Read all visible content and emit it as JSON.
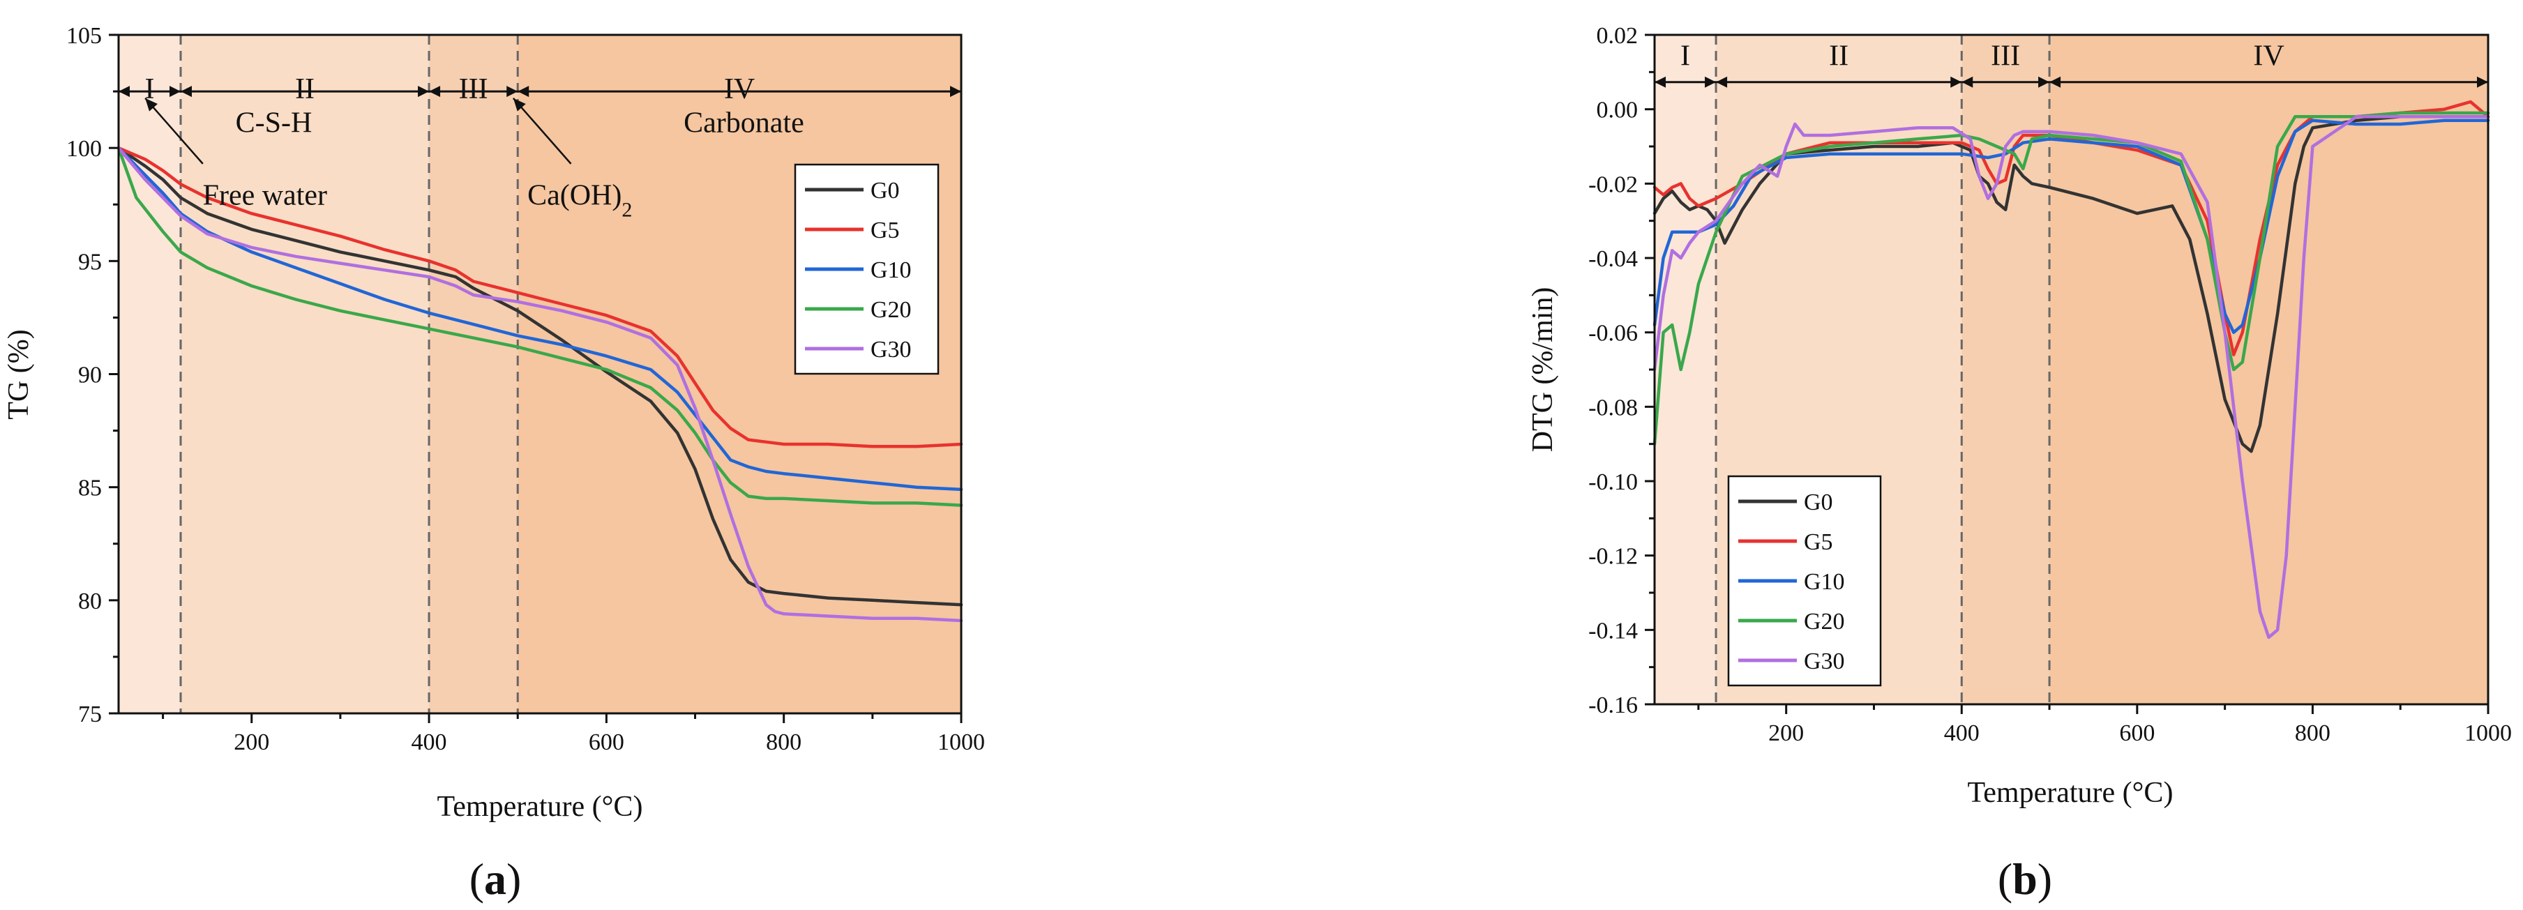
{
  "panels": [
    {
      "label_open": "(",
      "label": "a",
      "label_close": ")",
      "chart_data": {
        "type": "line",
        "xlabel": "Temperature (°C)",
        "ylabel": "TG (%)",
        "xlim": [
          50,
          1000
        ],
        "ylim": [
          75,
          105
        ],
        "x_ticks": [
          200,
          400,
          600,
          800,
          1000
        ],
        "y_ticks": [
          75,
          80,
          85,
          90,
          95,
          100,
          105
        ],
        "regions": [
          {
            "label": "I",
            "x0": 50,
            "x1": 120,
            "color": "#fbe6d8"
          },
          {
            "label": "II",
            "x0": 120,
            "x1": 400,
            "color": "#f9ddc6"
          },
          {
            "label": "III",
            "x0": 400,
            "x1": 500,
            "color": "#f6cfb0"
          },
          {
            "label": "IV",
            "x0": 500,
            "x1": 1000,
            "color": "#f5c6a0"
          }
        ],
        "region_label_y": 102.2,
        "arrow_y": 102.5,
        "annotations": [
          {
            "text": "C-S-H",
            "x": 225,
            "y": 100.7
          },
          {
            "text": "Free water",
            "x": 215,
            "y": 97.5,
            "arrow_from": [
              145,
              99.3
            ],
            "arrow_to": [
              80,
              102.2
            ]
          },
          {
            "text": "Carbonate",
            "x": 755,
            "y": 100.7
          },
          {
            "text": "Ca(OH)",
            "sub": "2",
            "x": 570,
            "y": 97.5,
            "arrow_from": [
              560,
              99.3
            ],
            "arrow_to": [
              495,
              102.2
            ]
          }
        ],
        "legend": {
          "position": "right",
          "entries": [
            "G0",
            "G5",
            "G10",
            "G20",
            "G30"
          ]
        },
        "series": [
          {
            "name": "G0",
            "color": "#333333",
            "x": [
              50,
              80,
              100,
              120,
              150,
              200,
              250,
              300,
              350,
              400,
              430,
              450,
              500,
              550,
              600,
              650,
              680,
              700,
              720,
              740,
              760,
              780,
              800,
              850,
              900,
              950,
              1000
            ],
            "y": [
              100,
              99.2,
              98.6,
              97.8,
              97.1,
              96.4,
              95.9,
              95.4,
              95.0,
              94.6,
              94.3,
              93.8,
              92.8,
              91.5,
              90.1,
              88.8,
              87.4,
              85.8,
              83.6,
              81.8,
              80.8,
              80.4,
              80.3,
              80.1,
              80.0,
              79.9,
              79.8
            ]
          },
          {
            "name": "G5",
            "color": "#e8322e",
            "x": [
              50,
              80,
              100,
              120,
              150,
              200,
              250,
              300,
              350,
              400,
              430,
              450,
              500,
              550,
              600,
              650,
              680,
              700,
              720,
              740,
              760,
              780,
              800,
              850,
              900,
              950,
              1000
            ],
            "y": [
              100,
              99.5,
              99.0,
              98.4,
              97.8,
              97.1,
              96.6,
              96.1,
              95.5,
              95.0,
              94.6,
              94.1,
              93.6,
              93.1,
              92.6,
              91.9,
              90.8,
              89.6,
              88.4,
              87.6,
              87.1,
              87.0,
              86.9,
              86.9,
              86.8,
              86.8,
              86.9
            ]
          },
          {
            "name": "G10",
            "color": "#2166d6",
            "x": [
              50,
              80,
              100,
              120,
              150,
              200,
              250,
              300,
              350,
              400,
              450,
              500,
              550,
              600,
              650,
              680,
              700,
              720,
              740,
              760,
              780,
              800,
              850,
              900,
              950,
              1000
            ],
            "y": [
              100,
              98.8,
              98.0,
              97.1,
              96.3,
              95.4,
              94.7,
              94.0,
              93.3,
              92.7,
              92.2,
              91.7,
              91.3,
              90.8,
              90.2,
              89.2,
              88.2,
              87.2,
              86.2,
              85.9,
              85.7,
              85.6,
              85.4,
              85.2,
              85.0,
              84.9
            ]
          },
          {
            "name": "G20",
            "color": "#3aa84b",
            "x": [
              50,
              70,
              100,
              120,
              150,
              200,
              250,
              300,
              350,
              400,
              450,
              500,
              550,
              600,
              650,
              680,
              700,
              720,
              740,
              760,
              780,
              800,
              850,
              900,
              950,
              1000
            ],
            "y": [
              100,
              97.8,
              96.3,
              95.4,
              94.7,
              93.9,
              93.3,
              92.8,
              92.4,
              92.0,
              91.6,
              91.2,
              90.7,
              90.2,
              89.4,
              88.4,
              87.4,
              86.2,
              85.2,
              84.6,
              84.5,
              84.5,
              84.4,
              84.3,
              84.3,
              84.2
            ]
          },
          {
            "name": "G30",
            "color": "#b06fe0",
            "x": [
              50,
              80,
              100,
              120,
              150,
              200,
              250,
              300,
              350,
              400,
              430,
              450,
              500,
              550,
              600,
              650,
              680,
              700,
              720,
              740,
              760,
              780,
              790,
              800,
              850,
              900,
              950,
              1000
            ],
            "y": [
              100,
              98.6,
              97.8,
              97.0,
              96.2,
              95.6,
              95.2,
              94.9,
              94.6,
              94.3,
              93.9,
              93.5,
              93.2,
              92.8,
              92.3,
              91.6,
              90.4,
              88.5,
              86.2,
              83.8,
              81.5,
              79.8,
              79.5,
              79.4,
              79.3,
              79.2,
              79.2,
              79.1
            ]
          }
        ]
      }
    },
    {
      "label_open": "(",
      "label": "b",
      "label_close": ")",
      "chart_data": {
        "type": "line",
        "xlabel": "Temperature (°C)",
        "ylabel": "DTG (%/min)",
        "xlim": [
          50,
          1000
        ],
        "ylim": [
          -0.16,
          0.02
        ],
        "x_ticks": [
          200,
          400,
          600,
          800,
          1000
        ],
        "y_ticks": [
          -0.16,
          -0.14,
          -0.12,
          -0.1,
          -0.08,
          -0.06,
          -0.04,
          -0.02,
          0.0,
          0.02
        ],
        "y_tick_labels": [
          "-0.16",
          "-0.14",
          "-0.12",
          "-0.10",
          "-0.08",
          "-0.06",
          "-0.04",
          "-0.02",
          "0.00",
          "0.02"
        ],
        "regions": [
          {
            "label": "I",
            "x0": 50,
            "x1": 120,
            "color": "#fbe6d8"
          },
          {
            "label": "II",
            "x0": 120,
            "x1": 400,
            "color": "#f9ddc6"
          },
          {
            "label": "III",
            "x0": 400,
            "x1": 500,
            "color": "#f6cfb0"
          },
          {
            "label": "IV",
            "x0": 500,
            "x1": 1000,
            "color": "#f5c6a0"
          }
        ],
        "region_label_y": 0.0118,
        "arrow_y": 0.0073,
        "annotations": [],
        "legend": {
          "position": "bottom-left",
          "entries": [
            "G0",
            "G5",
            "G10",
            "G20",
            "G30"
          ]
        },
        "series": [
          {
            "name": "G0",
            "color": "#333333",
            "x": [
              50,
              60,
              70,
              80,
              90,
              100,
              110,
              120,
              130,
              150,
              170,
              200,
              250,
              300,
              350,
              390,
              410,
              420,
              430,
              440,
              450,
              460,
              470,
              480,
              500,
              550,
              600,
              620,
              640,
              660,
              680,
              700,
              720,
              730,
              740,
              760,
              780,
              790,
              800,
              850,
              900,
              950,
              1000
            ],
            "y": [
              -0.028,
              -0.024,
              -0.022,
              -0.025,
              -0.027,
              -0.026,
              -0.027,
              -0.03,
              -0.036,
              -0.027,
              -0.02,
              -0.012,
              -0.011,
              -0.01,
              -0.01,
              -0.009,
              -0.011,
              -0.018,
              -0.02,
              -0.025,
              -0.027,
              -0.015,
              -0.018,
              -0.02,
              -0.021,
              -0.024,
              -0.028,
              -0.027,
              -0.026,
              -0.035,
              -0.055,
              -0.078,
              -0.09,
              -0.092,
              -0.085,
              -0.055,
              -0.02,
              -0.01,
              -0.005,
              -0.003,
              -0.002,
              -0.002,
              -0.002
            ]
          },
          {
            "name": "G5",
            "color": "#e8322e",
            "x": [
              50,
              60,
              70,
              80,
              90,
              100,
              110,
              120,
              150,
              200,
              250,
              300,
              350,
              400,
              420,
              430,
              440,
              450,
              460,
              470,
              500,
              550,
              600,
              650,
              680,
              700,
              710,
              720,
              740,
              760,
              780,
              800,
              850,
              900,
              950,
              980,
              1000
            ],
            "y": [
              -0.021,
              -0.023,
              -0.021,
              -0.02,
              -0.024,
              -0.026,
              -0.025,
              -0.024,
              -0.02,
              -0.012,
              -0.009,
              -0.009,
              -0.009,
              -0.009,
              -0.011,
              -0.016,
              -0.02,
              -0.019,
              -0.01,
              -0.007,
              -0.007,
              -0.009,
              -0.011,
              -0.015,
              -0.03,
              -0.055,
              -0.066,
              -0.06,
              -0.035,
              -0.015,
              -0.006,
              -0.002,
              -0.002,
              -0.001,
              0.0,
              0.002,
              -0.002
            ]
          },
          {
            "name": "G10",
            "color": "#2166d6",
            "x": [
              50,
              60,
              70,
              80,
              100,
              120,
              140,
              160,
              200,
              250,
              300,
              350,
              400,
              430,
              450,
              470,
              500,
              550,
              600,
              650,
              680,
              700,
              710,
              720,
              740,
              760,
              780,
              800,
              850,
              900,
              950,
              1000
            ],
            "y": [
              -0.058,
              -0.04,
              -0.033,
              -0.033,
              -0.033,
              -0.031,
              -0.026,
              -0.018,
              -0.013,
              -0.012,
              -0.012,
              -0.012,
              -0.012,
              -0.013,
              -0.012,
              -0.009,
              -0.008,
              -0.009,
              -0.01,
              -0.015,
              -0.035,
              -0.055,
              -0.06,
              -0.058,
              -0.04,
              -0.018,
              -0.006,
              -0.003,
              -0.004,
              -0.004,
              -0.003,
              -0.003
            ]
          },
          {
            "name": "G20",
            "color": "#3aa84b",
            "x": [
              50,
              55,
              60,
              70,
              80,
              90,
              100,
              120,
              150,
              200,
              250,
              300,
              350,
              400,
              420,
              440,
              460,
              470,
              480,
              500,
              550,
              600,
              650,
              680,
              700,
              710,
              720,
              740,
              760,
              780,
              800,
              850,
              900,
              950,
              1000
            ],
            "y": [
              -0.09,
              -0.075,
              -0.06,
              -0.058,
              -0.07,
              -0.06,
              -0.047,
              -0.033,
              -0.018,
              -0.012,
              -0.01,
              -0.009,
              -0.008,
              -0.007,
              -0.008,
              -0.01,
              -0.012,
              -0.016,
              -0.008,
              -0.007,
              -0.008,
              -0.009,
              -0.014,
              -0.035,
              -0.06,
              -0.07,
              -0.068,
              -0.04,
              -0.01,
              -0.002,
              -0.002,
              -0.002,
              -0.001,
              -0.001,
              -0.001
            ]
          },
          {
            "name": "G30",
            "color": "#b06fe0",
            "x": [
              50,
              60,
              70,
              80,
              90,
              100,
              120,
              150,
              170,
              190,
              200,
              210,
              220,
              250,
              300,
              350,
              390,
              410,
              420,
              430,
              440,
              450,
              460,
              470,
              500,
              550,
              600,
              650,
              680,
              700,
              720,
              740,
              750,
              760,
              770,
              780,
              790,
              800,
              850,
              900,
              950,
              1000
            ],
            "y": [
              -0.07,
              -0.05,
              -0.038,
              -0.04,
              -0.036,
              -0.033,
              -0.03,
              -0.02,
              -0.015,
              -0.018,
              -0.01,
              -0.004,
              -0.007,
              -0.007,
              -0.006,
              -0.005,
              -0.005,
              -0.008,
              -0.018,
              -0.024,
              -0.02,
              -0.01,
              -0.007,
              -0.006,
              -0.006,
              -0.007,
              -0.009,
              -0.012,
              -0.025,
              -0.06,
              -0.1,
              -0.135,
              -0.142,
              -0.14,
              -0.12,
              -0.08,
              -0.04,
              -0.01,
              -0.002,
              -0.002,
              -0.002,
              -0.002
            ]
          }
        ]
      }
    }
  ]
}
